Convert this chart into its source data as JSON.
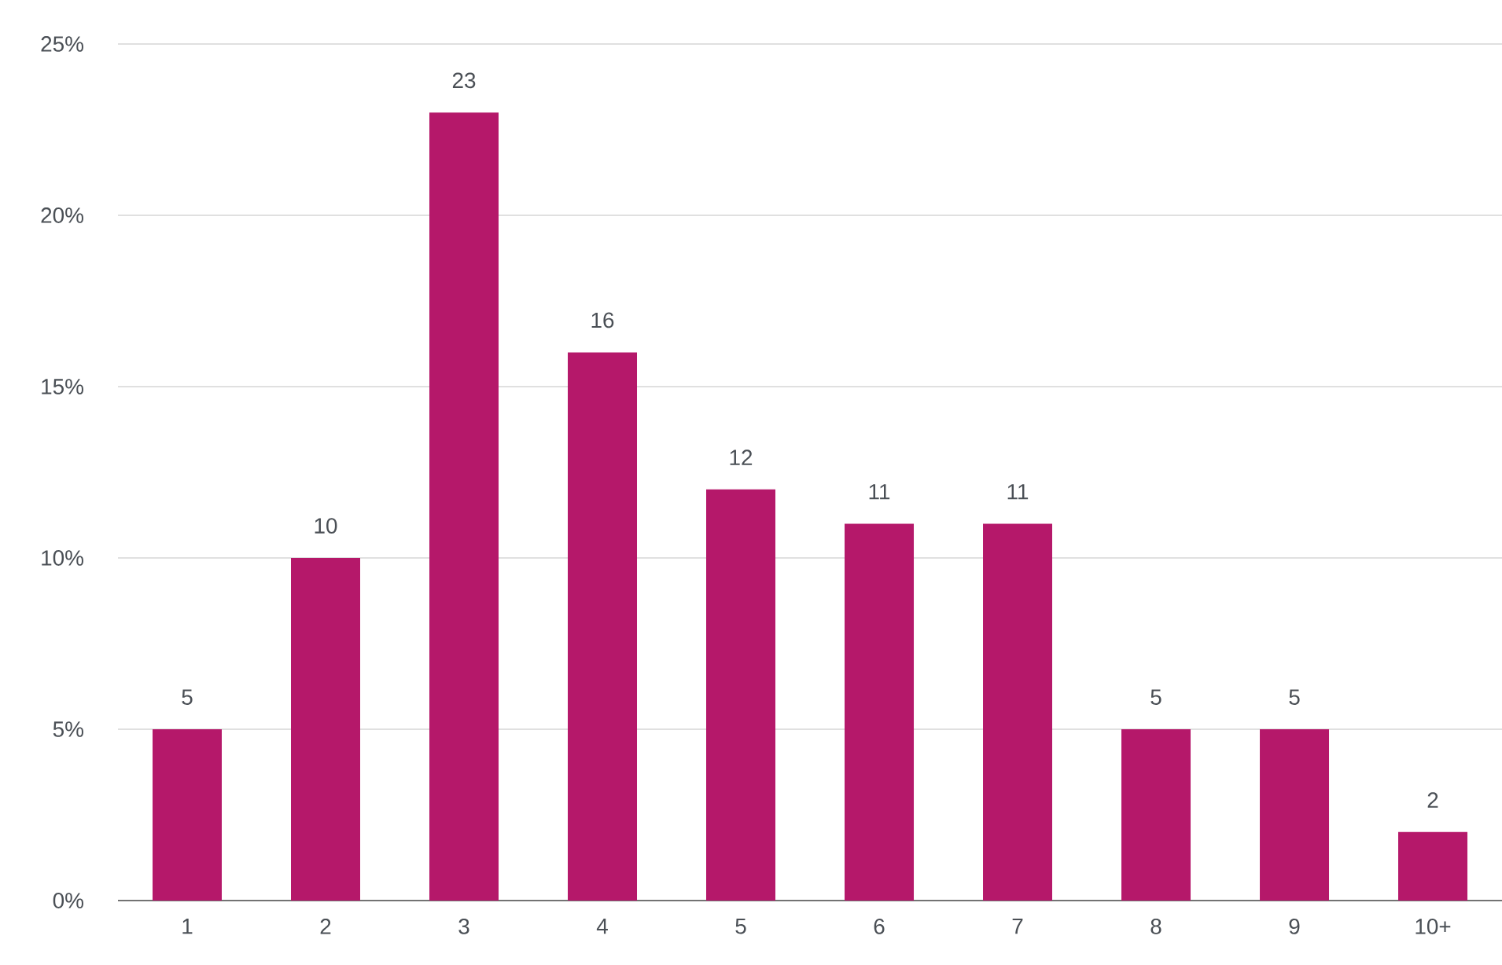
{
  "chart_data": {
    "type": "bar",
    "categories": [
      "1",
      "2",
      "3",
      "4",
      "5",
      "6",
      "7",
      "8",
      "9",
      "10+"
    ],
    "values": [
      5,
      10,
      23,
      16,
      12,
      11,
      11,
      5,
      5,
      2
    ],
    "color": "#b5186a",
    "ylim": [
      0,
      25
    ],
    "yticks": [
      {
        "value": 0,
        "label": "0%"
      },
      {
        "value": 5,
        "label": "5%"
      },
      {
        "value": 10,
        "label": "10%"
      },
      {
        "value": 15,
        "label": "15%"
      },
      {
        "value": 20,
        "label": "20%"
      },
      {
        "value": 25,
        "label": "25%"
      }
    ],
    "grid": "y",
    "data_labels": true
  }
}
